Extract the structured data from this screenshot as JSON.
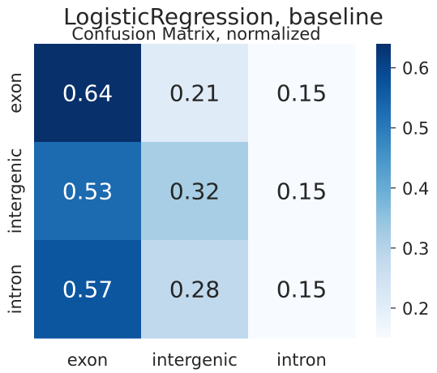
{
  "chart_data": {
    "type": "heatmap",
    "title": "LogisticRegression, baseline",
    "subtitle": "Confusion Matrix, normalized",
    "xlabel": "",
    "ylabel": "",
    "row_labels": [
      "exon",
      "intergenic",
      "intron"
    ],
    "col_labels": [
      "exon",
      "intergenic",
      "intron"
    ],
    "values": [
      [
        0.64,
        0.21,
        0.15
      ],
      [
        0.53,
        0.32,
        0.15
      ],
      [
        0.57,
        0.28,
        0.15
      ]
    ],
    "value_labels": [
      [
        "0.64",
        "0.21",
        "0.15"
      ],
      [
        "0.53",
        "0.32",
        "0.15"
      ],
      [
        "0.57",
        "0.28",
        "0.15"
      ]
    ],
    "colormap": "Blues",
    "vmin": 0.15,
    "vmax": 0.64,
    "colorbar_ticks": [
      0.2,
      0.3,
      0.4,
      0.5,
      0.6
    ],
    "colorbar_tick_labels": [
      "0.2",
      "0.3",
      "0.4",
      "0.5",
      "0.6"
    ],
    "colorbar_placement": "right",
    "grid": false
  }
}
